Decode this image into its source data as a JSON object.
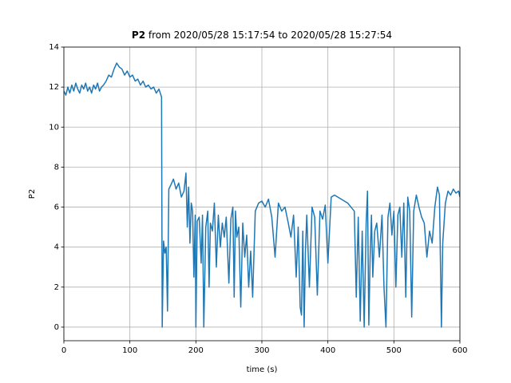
{
  "chart_data": {
    "type": "line",
    "title_bold": "P2",
    "title": "from 2020/05/28 15:17:54 to 2020/05/28 15:27:54",
    "x_label": "time (s)",
    "y_label": "P2",
    "color": "#1f77b4",
    "grid": true,
    "xlim": [
      0,
      600
    ],
    "xticks": [
      0,
      100,
      200,
      300,
      400,
      500,
      600
    ],
    "ylim": [
      -0.68,
      14
    ],
    "yticks": [
      0,
      2,
      4,
      6,
      8,
      10,
      12,
      14
    ],
    "x": [
      0,
      3,
      6,
      9,
      12,
      15,
      18,
      21,
      24,
      27,
      30,
      33,
      36,
      39,
      42,
      45,
      48,
      51,
      54,
      57,
      60,
      64,
      68,
      72,
      76,
      80,
      84,
      88,
      92,
      96,
      100,
      104,
      108,
      112,
      116,
      120,
      124,
      128,
      132,
      136,
      140,
      144,
      146,
      148,
      149,
      151,
      153,
      155,
      157,
      159,
      162,
      166,
      170,
      174,
      178,
      182,
      185,
      187,
      189,
      191,
      193,
      195,
      197,
      199,
      200,
      202,
      205,
      208,
      210,
      212,
      215,
      218,
      220,
      222,
      225,
      228,
      231,
      234,
      237,
      240,
      243,
      246,
      250,
      253,
      256,
      258,
      260,
      262,
      265,
      268,
      271,
      274,
      277,
      280,
      283,
      286,
      290,
      295,
      300,
      305,
      310,
      315,
      320,
      325,
      330,
      335,
      340,
      344,
      348,
      352,
      355,
      358,
      360,
      362,
      364,
      366,
      368,
      372,
      376,
      380,
      384,
      388,
      392,
      396,
      400,
      405,
      410,
      415,
      420,
      425,
      430,
      435,
      440,
      443,
      446,
      449,
      452,
      455,
      458,
      460,
      462,
      464,
      466,
      468,
      471,
      474,
      478,
      482,
      485,
      488,
      491,
      494,
      497,
      500,
      503,
      506,
      509,
      512,
      515,
      518,
      521,
      524,
      527,
      530,
      534,
      538,
      542,
      546,
      550,
      554,
      558,
      562,
      566,
      569,
      572,
      574,
      578,
      582,
      586,
      590,
      594,
      598,
      600
    ],
    "values": [
      11.8,
      11.6,
      12.0,
      11.7,
      12.1,
      11.8,
      12.2,
      11.9,
      11.7,
      12.1,
      11.9,
      12.2,
      11.8,
      12.0,
      11.7,
      12.1,
      11.9,
      12.2,
      11.8,
      12.0,
      12.1,
      12.3,
      12.6,
      12.5,
      12.9,
      13.2,
      13.0,
      12.9,
      12.6,
      12.8,
      12.5,
      12.6,
      12.3,
      12.4,
      12.1,
      12.3,
      12.0,
      12.1,
      11.9,
      12.0,
      11.7,
      11.9,
      11.7,
      11.5,
      0,
      4.3,
      3.7,
      4.0,
      0.8,
      6.9,
      7.1,
      7.4,
      6.9,
      7.2,
      6.5,
      6.8,
      7.7,
      5.0,
      7.0,
      4.2,
      6.2,
      5.8,
      2.5,
      5.6,
      0,
      5.3,
      5.5,
      3.2,
      5.6,
      0,
      5.0,
      5.8,
      2.0,
      5.2,
      4.8,
      6.2,
      3.0,
      5.6,
      4.0,
      5.2,
      4.5,
      5.5,
      2.2,
      5.4,
      6.0,
      1.5,
      5.8,
      4.5,
      5.0,
      1.0,
      5.2,
      3.5,
      4.6,
      2.0,
      3.8,
      1.5,
      5.8,
      6.2,
      6.3,
      6.0,
      6.4,
      5.5,
      3.5,
      6.2,
      5.8,
      6.0,
      5.2,
      4.5,
      5.6,
      2.5,
      5.0,
      1.0,
      0.6,
      4.8,
      0,
      3.8,
      5.6,
      2.0,
      6.0,
      5.5,
      1.6,
      5.8,
      5.4,
      6.1,
      3.2,
      6.5,
      6.6,
      6.5,
      6.4,
      6.3,
      6.2,
      6.0,
      5.8,
      1.5,
      5.5,
      0.3,
      4.8,
      0,
      5.2,
      6.8,
      0.1,
      3.5,
      5.6,
      2.5,
      4.8,
      5.2,
      3.5,
      5.6,
      2.0,
      0,
      5.5,
      6.2,
      4.6,
      5.8,
      2.0,
      5.6,
      6.0,
      3.5,
      6.2,
      1.5,
      6.5,
      5.8,
      0.5,
      5.8,
      6.6,
      6.0,
      5.5,
      5.2,
      3.5,
      4.8,
      4.2,
      6.0,
      7.0,
      6.6,
      0,
      4.2,
      6.2,
      6.8,
      6.6,
      6.9,
      6.7,
      6.8,
      6.5
    ]
  }
}
